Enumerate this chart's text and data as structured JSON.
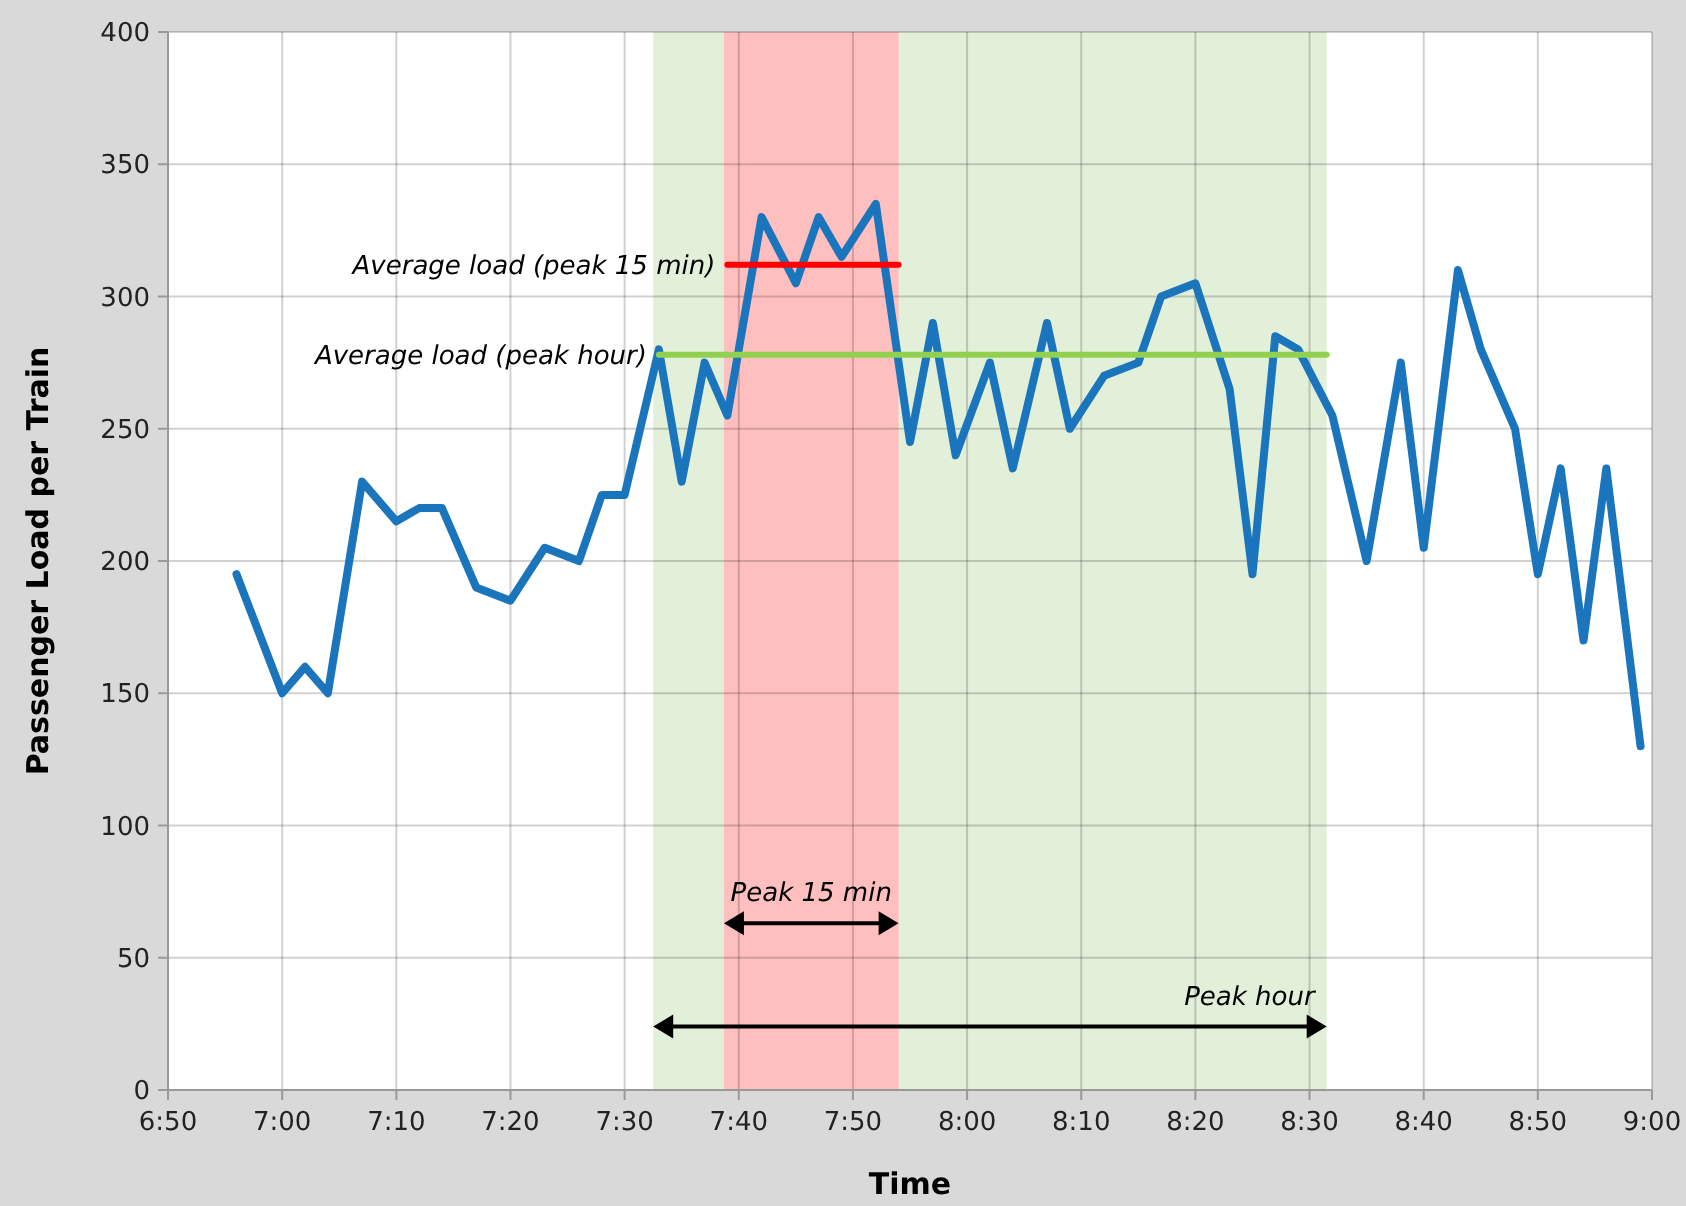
{
  "chart_data": {
    "type": "line",
    "xlabel": "Time",
    "ylabel": "Passenger Load per Train",
    "xlim": [
      6.8333,
      9
    ],
    "ylim": [
      0,
      400
    ],
    "xticks": [
      {
        "value": 6.8333,
        "label": "6:50"
      },
      {
        "value": 7,
        "label": "7:00"
      },
      {
        "value": 7.1667,
        "label": "7:10"
      },
      {
        "value": 7.3333,
        "label": "7:20"
      },
      {
        "value": 7.5,
        "label": "7:30"
      },
      {
        "value": 7.6667,
        "label": "7:40"
      },
      {
        "value": 7.8333,
        "label": "7:50"
      },
      {
        "value": 8,
        "label": "8:00"
      },
      {
        "value": 8.1667,
        "label": "8:10"
      },
      {
        "value": 8.3333,
        "label": "8:20"
      },
      {
        "value": 8.5,
        "label": "8:30"
      },
      {
        "value": 8.6667,
        "label": "8:40"
      },
      {
        "value": 8.8333,
        "label": "8:50"
      },
      {
        "value": 9,
        "label": "9:00"
      }
    ],
    "yticks": [
      0,
      50,
      100,
      150,
      200,
      250,
      300,
      350,
      400
    ],
    "grid": true,
    "bands": [
      {
        "axis": "x",
        "from": 7.5417,
        "to": 8.525,
        "label": "Peak hour",
        "color": "#e2efd9"
      },
      {
        "axis": "x",
        "from": 7.645,
        "to": 7.9,
        "label": "Peak 15 min",
        "color": "#ffbfbf"
      }
    ],
    "series": [
      {
        "color": "#1b75bc",
        "x": [
          6.9333,
          7,
          7.0333,
          7.0667,
          7.1167,
          7.1667,
          7.2,
          7.2333,
          7.2833,
          7.3333,
          7.3833,
          7.4333,
          7.4667,
          7.5,
          7.55,
          7.5833,
          7.6167,
          7.65,
          7.7,
          7.75,
          7.7833,
          7.8167,
          7.8667,
          7.9167,
          7.95,
          7.9833,
          8.0333,
          8.0667,
          8.1167,
          8.15,
          8.2,
          8.25,
          8.2833,
          8.3333,
          8.3833,
          8.4167,
          8.45,
          8.4833,
          8.5333,
          8.5833,
          8.6333,
          8.6667,
          8.7167,
          8.75,
          8.8,
          8.8333,
          8.8667,
          8.9,
          8.9333,
          8.9833
        ],
        "values": [
          195,
          150,
          160,
          150,
          230,
          215,
          220,
          220,
          190,
          185,
          205,
          200,
          225,
          225,
          280,
          230,
          275,
          255,
          330,
          305,
          330,
          315,
          335,
          245,
          290,
          240,
          275,
          235,
          290,
          250,
          270,
          275,
          300,
          305,
          265,
          195,
          285,
          280,
          255,
          200,
          275,
          205,
          310,
          280,
          250,
          195,
          235,
          170,
          235,
          130
        ]
      },
      {
        "name": "Average load (peak 15 min)",
        "color": "#ff0000",
        "x": [
          7.65,
          7.9
        ],
        "values": [
          312,
          312
        ]
      },
      {
        "name": "Average load (peak hour)",
        "color": "#92d050",
        "x": [
          7.55,
          8.525
        ],
        "values": [
          278,
          278
        ]
      }
    ]
  }
}
